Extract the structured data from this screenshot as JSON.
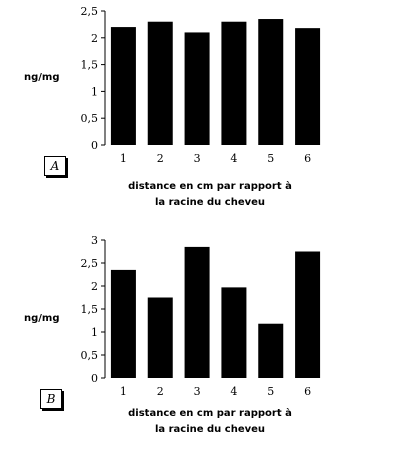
{
  "chart_data": [
    {
      "type": "bar",
      "panel_label": "A",
      "categories": [
        "1",
        "2",
        "3",
        "4",
        "5",
        "6"
      ],
      "values": [
        2.2,
        2.3,
        2.1,
        2.3,
        2.35,
        2.18
      ],
      "ylabel": "ng/mg",
      "xlabel_line1": "distance en cm par rapport à",
      "xlabel_line2": "la racine du cheveu",
      "yticks": [
        "0",
        "0,5",
        "1",
        "1,5",
        "2",
        "2,5"
      ],
      "ylim": [
        0,
        2.5
      ],
      "bar_color": "#000000",
      "grid": false
    },
    {
      "type": "bar",
      "panel_label": "B",
      "categories": [
        "1",
        "2",
        "3",
        "4",
        "5",
        "6"
      ],
      "values": [
        2.35,
        1.75,
        2.85,
        1.97,
        1.18,
        2.75
      ],
      "ylabel": "ng/mg",
      "xlabel_line1": "distance en cm par rapport à",
      "xlabel_line2": "la racine du cheveu",
      "yticks": [
        "0",
        "0,5",
        "1",
        "1,5",
        "2",
        "2,5",
        "3"
      ],
      "ylim": [
        0,
        3
      ],
      "bar_color": "#000000",
      "grid": false
    }
  ]
}
